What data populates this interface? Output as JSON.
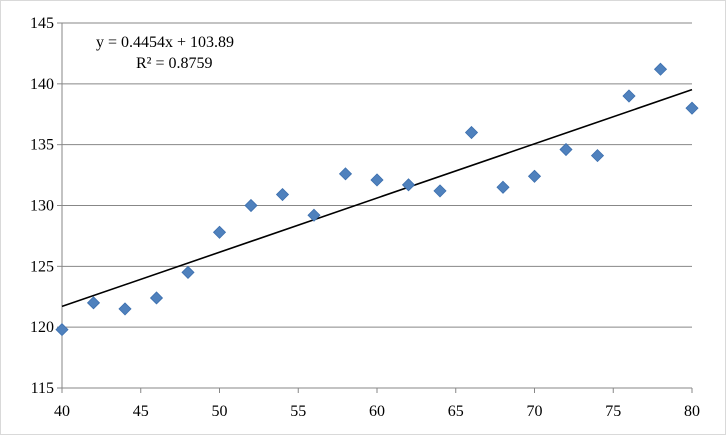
{
  "chart_data": {
    "type": "scatter",
    "title": "",
    "xlabel": "",
    "ylabel": "",
    "xlim": [
      40,
      80
    ],
    "ylim": [
      115,
      145
    ],
    "x_ticks": [
      40,
      45,
      50,
      55,
      60,
      65,
      70,
      75,
      80
    ],
    "y_ticks": [
      115,
      120,
      125,
      130,
      135,
      140,
      145
    ],
    "grid": "horizontal",
    "legend": "none",
    "marker": "diamond",
    "marker_color": "#4f81bd",
    "trendline_color": "#000000",
    "series": [
      {
        "x": [
          40,
          42,
          44,
          46,
          48,
          50,
          52,
          54,
          56,
          58,
          60,
          62,
          64,
          66,
          68,
          70,
          72,
          74,
          76,
          78,
          80
        ],
        "y": [
          119.8,
          122.0,
          121.5,
          122.4,
          124.5,
          127.8,
          130.0,
          130.9,
          129.2,
          132.6,
          132.1,
          131.7,
          131.2,
          136.0,
          131.5,
          132.4,
          134.6,
          134.1,
          139.0,
          141.2,
          138.0
        ]
      }
    ],
    "trendline": {
      "type": "linear",
      "slope": 0.4454,
      "intercept": 103.89,
      "equation_text": "y = 0.4454x + 103.89",
      "r2_text": "R² = 0.8759"
    }
  }
}
